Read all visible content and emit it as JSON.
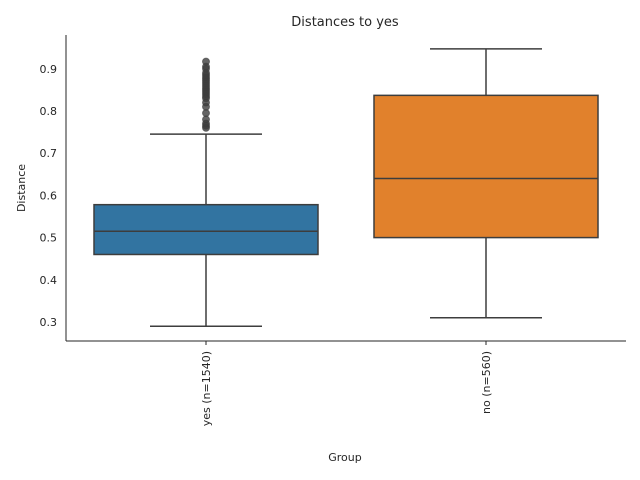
{
  "chart_data": {
    "type": "box",
    "title": "Distances to yes",
    "xlabel": "Group",
    "ylabel": "Distance",
    "categories": [
      "yes (n=1540)",
      "no (n=560)"
    ],
    "ylim": [
      0.255,
      0.98
    ],
    "yticks": [
      0.3,
      0.4,
      0.5,
      0.6,
      0.7,
      0.8,
      0.9
    ],
    "grid": false,
    "legend": "none",
    "boxes": [
      {
        "category": "yes (n=1540)",
        "color": "#3274a1",
        "whisker_low": 0.29,
        "q1": 0.46,
        "median": 0.515,
        "q3": 0.578,
        "whisker_high": 0.745,
        "outliers": [
          0.76,
          0.765,
          0.77,
          0.78,
          0.795,
          0.81,
          0.82,
          0.83,
          0.835,
          0.84,
          0.845,
          0.85,
          0.855,
          0.86,
          0.865,
          0.87,
          0.875,
          0.88,
          0.885,
          0.89,
          0.9,
          0.905,
          0.917
        ]
      },
      {
        "category": "no (n=560)",
        "color": "#e1812c",
        "whisker_low": 0.31,
        "q1": 0.5,
        "median": 0.64,
        "q3": 0.837,
        "whisker_high": 0.947,
        "outliers": []
      }
    ]
  }
}
